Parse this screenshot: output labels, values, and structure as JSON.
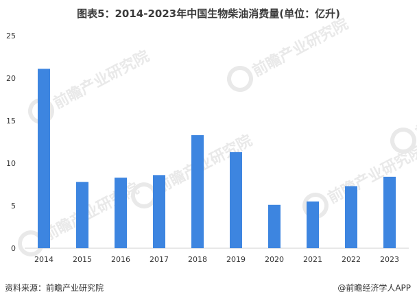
{
  "chart_data": {
    "type": "bar",
    "title": "图表5：2014-2023年中国生物柴油消费量(单位：亿升)",
    "categories": [
      "2014",
      "2015",
      "2016",
      "2017",
      "2018",
      "2019",
      "2020",
      "2021",
      "2022",
      "2023"
    ],
    "values": [
      21.1,
      7.8,
      8.3,
      8.6,
      13.3,
      11.3,
      5.1,
      5.5,
      7.3,
      8.4
    ],
    "ylim": [
      0,
      25
    ],
    "yticks": [
      "0",
      "5",
      "10",
      "15",
      "20",
      "25"
    ],
    "grid": false,
    "bar_color": "#3d85e0"
  },
  "footer": {
    "source": "资料来源：前瞻产业研究院",
    "brand": "@前瞻经济学人APP"
  },
  "watermark": {
    "text": "前瞻产业研究院",
    "color": "#e9e9e9"
  }
}
